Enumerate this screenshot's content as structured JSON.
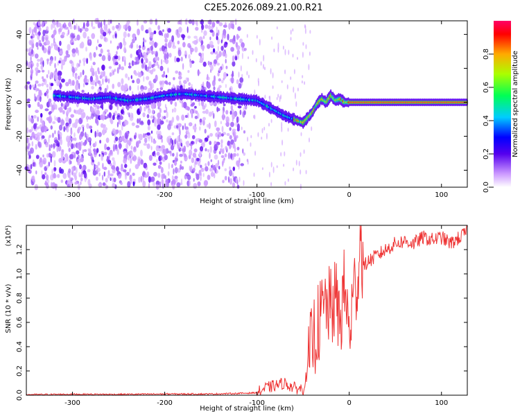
{
  "title": "C2E5.2026.089.21.00.R21",
  "colors": {
    "snr_line": "#ee3333",
    "axis": "#000000",
    "background": "#ffffff"
  },
  "chart_data": [
    {
      "type": "heatmap",
      "xlabel": "Height of straight line (km)",
      "ylabel": "Frequency (Hz)",
      "xlim": [
        -350,
        128
      ],
      "ylim": [
        -50,
        48
      ],
      "xticks": [
        -300,
        -200,
        -100,
        0,
        100
      ],
      "yticks": [
        -40,
        -20,
        0,
        20,
        40
      ],
      "colorbar": {
        "label": "Normalized spectral amplitude",
        "range": [
          0,
          1
        ],
        "ticks": [
          "0.0",
          "0.2",
          "0.4",
          "0.6",
          "0.8"
        ],
        "ticks_values": [
          0,
          0.2,
          0.4,
          0.6,
          0.8
        ],
        "colormap": "rainbow"
      },
      "ridge": {
        "x": [
          -320,
          -300,
          -280,
          -260,
          -240,
          -220,
          -200,
          -180,
          -160,
          -140,
          -120,
          -100,
          -90,
          -80,
          -70,
          -60,
          -50,
          -45,
          -40,
          -35,
          -30,
          -25,
          -20,
          -15,
          -10,
          -5,
          0,
          20,
          40,
          60,
          80,
          100,
          128
        ],
        "y": [
          4,
          3,
          2,
          3,
          1,
          2,
          4,
          5,
          4,
          3,
          2,
          1,
          -2,
          -5,
          -8,
          -10,
          -12,
          -9,
          -6,
          -1,
          2,
          0,
          4,
          1,
          2,
          0,
          0,
          0,
          0,
          0,
          0,
          0,
          0
        ]
      }
    },
    {
      "type": "line",
      "xlabel": "Height of straight line (km)",
      "ylabel": "SNR (10 * v/v)",
      "y_multiplier": "(x10⁴)",
      "xlim": [
        -350,
        128
      ],
      "ylim": [
        0,
        1.4
      ],
      "xticks": [
        -300,
        -200,
        -100,
        0,
        100
      ],
      "yticks": [
        "0.0",
        "0.2",
        "0.4",
        "0.6",
        "0.8",
        "1.0",
        "1.2"
      ],
      "yticks_values": [
        0,
        0.2,
        0.4,
        0.6,
        0.8,
        1.0,
        1.2
      ],
      "series": [
        {
          "x": [
            -350,
            -300,
            -250,
            -200,
            -150,
            -120,
            -100,
            -90,
            -80,
            -70,
            -60,
            -50,
            -45,
            -40,
            -35,
            -30,
            -25,
            -20,
            -15,
            -10,
            -5,
            0,
            5,
            10,
            12,
            15,
            20,
            30,
            40,
            50,
            60,
            70,
            80,
            90,
            100,
            110,
            120,
            128
          ],
          "y": [
            0.005,
            0.008,
            0.007,
            0.01,
            0.01,
            0.015,
            0.02,
            0.06,
            0.08,
            0.1,
            0.06,
            0.05,
            0.2,
            0.45,
            0.55,
            0.65,
            0.75,
            0.7,
            0.8,
            0.6,
            0.9,
            0.5,
            0.85,
            1.0,
            1.4,
            1.05,
            1.1,
            1.15,
            1.2,
            1.25,
            1.27,
            1.25,
            1.3,
            1.28,
            1.3,
            1.25,
            1.3,
            1.35
          ]
        }
      ]
    }
  ]
}
